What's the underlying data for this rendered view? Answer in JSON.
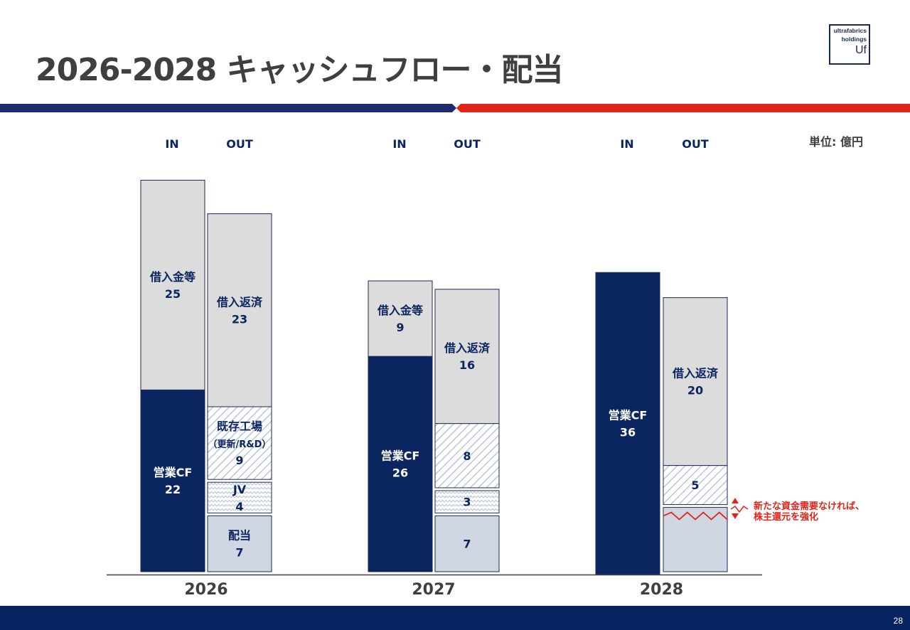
{
  "header": {
    "title": "2026-2028 キャッシュフロー・配当",
    "logo": {
      "line1": "ultrafabrics",
      "line2": "holdings",
      "line3": "Uf"
    }
  },
  "unit_label": "単位: 億円",
  "annotation": {
    "line1": "新たな資金需要なければ、",
    "line2": "株主還元を強化"
  },
  "page_number": "28",
  "colors": {
    "navy": "#0b2560",
    "gray": "#dcdcdc",
    "lightblue": "#d0d7e3",
    "hatch": "#b9c7d8",
    "red": "#e1251b"
  },
  "chart_data": {
    "type": "bar",
    "stacked": true,
    "unit": "億円",
    "categories": [
      "2026",
      "2027",
      "2028"
    ],
    "column_labels": {
      "in": "IN",
      "out": "OUT"
    },
    "years": [
      {
        "year": "2026",
        "in": [
          {
            "label": "営業CF",
            "value": 22,
            "style": "navy"
          },
          {
            "label": "借入金等",
            "value": 25,
            "style": "gray"
          }
        ],
        "out": [
          {
            "label": "配当",
            "value": 7,
            "style": "lightblue"
          },
          {
            "label": "JV",
            "value": 4,
            "style": "wave"
          },
          {
            "label": "既存工場",
            "sublabel": "（更新/R&D）",
            "value": 9,
            "style": "diag"
          },
          {
            "label": "借入返済",
            "value": 23,
            "style": "gray"
          }
        ]
      },
      {
        "year": "2027",
        "in": [
          {
            "label": "営業CF",
            "value": 26,
            "style": "navy"
          },
          {
            "label": "借入金等",
            "value": 9,
            "style": "gray"
          }
        ],
        "out": [
          {
            "label": "",
            "value": 7,
            "style": "lightblue"
          },
          {
            "label": "",
            "value": 3,
            "style": "wave"
          },
          {
            "label": "",
            "value": 8,
            "style": "diag"
          },
          {
            "label": "借入返済",
            "value": 16,
            "style": "gray"
          }
        ]
      },
      {
        "year": "2028",
        "in": [
          {
            "label": "営業CF",
            "value": 36,
            "style": "navy"
          }
        ],
        "out": [
          {
            "label": "",
            "value": 8,
            "style": "lightblue",
            "value_label": false,
            "broken": true
          },
          {
            "label": "",
            "value": 5,
            "style": "diag"
          },
          {
            "label": "借入返済",
            "value": 20,
            "style": "gray"
          }
        ]
      }
    ]
  }
}
